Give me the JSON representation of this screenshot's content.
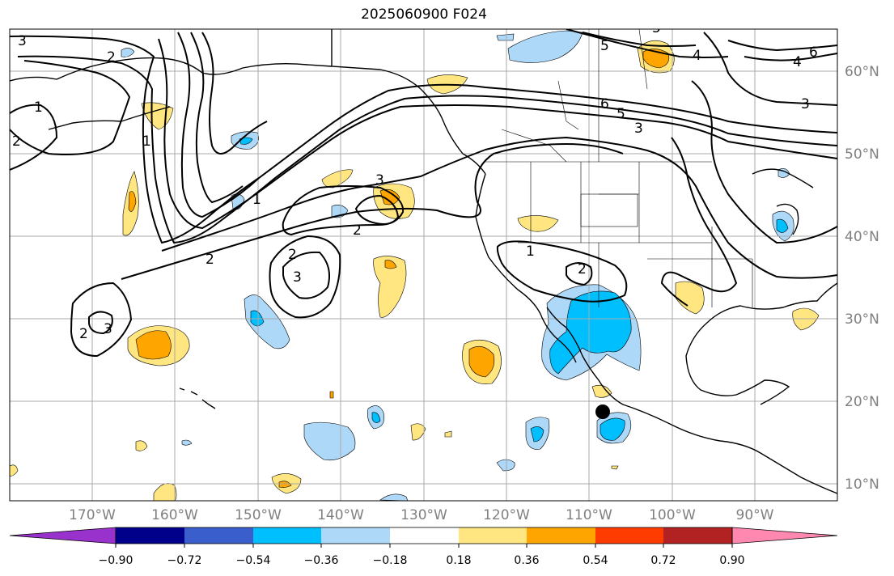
{
  "title": "2025060900 F024",
  "lat_ticks": [
    "10°N",
    "20°N",
    "30°N",
    "40°N",
    "50°N",
    "60°N"
  ],
  "lon_ticks": [
    "170°W",
    "160°W",
    "150°W",
    "140°W",
    "130°W",
    "120°W",
    "110°W",
    "100°W",
    "90°W"
  ],
  "colorbar": {
    "levels": [
      "−0.90",
      "−0.72",
      "−0.54",
      "−0.36",
      "−0.18",
      "0.18",
      "0.36",
      "0.54",
      "0.72",
      "0.90"
    ],
    "colors": [
      "#9932cc",
      "#00008b",
      "#3a5fcd",
      "#00bfff",
      "#add8f8",
      "#ffffff",
      "#ffe680",
      "#ffa500",
      "#ff3c00",
      "#b22222",
      "#ff88b0"
    ]
  },
  "contour_labels": [
    "3",
    "2",
    "1",
    "2",
    "1",
    "2",
    "1",
    "2",
    "3",
    "2",
    "3",
    "5",
    "4",
    "6",
    "3",
    "5",
    "4",
    "6",
    "5",
    "3",
    "1",
    "2",
    "2",
    "3"
  ],
  "marker": "storm-center"
}
